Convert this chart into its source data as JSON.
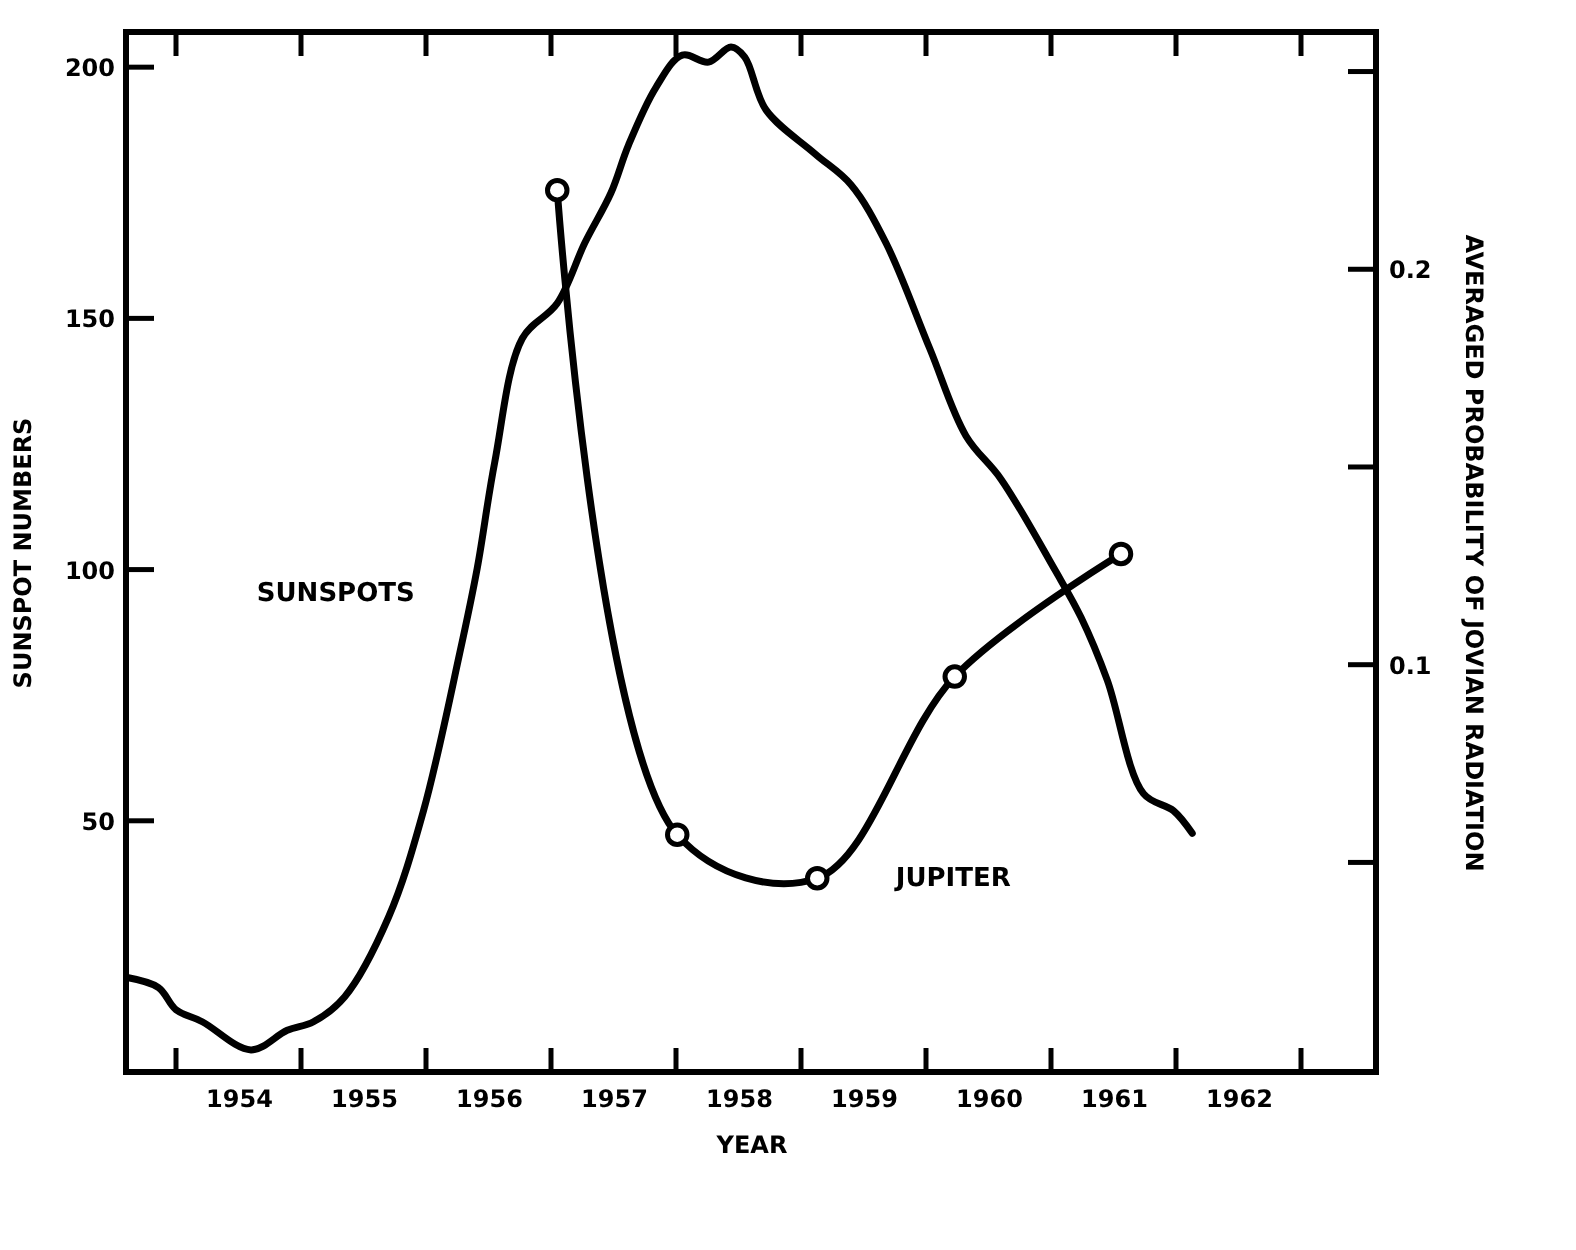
{
  "chart_data": {
    "type": "line",
    "xlabel": "YEAR",
    "ylabel": "SUNSPOT NUMBERS",
    "y2label": "AVERAGED PROBABILITY OF JOVIAN RADIATION",
    "xlim": [
      1953.6,
      1963.6
    ],
    "ylim": [
      0,
      207
    ],
    "y2lim": [
      -0.003,
      0.26
    ],
    "xticks": [
      {
        "value": 1954,
        "label": null
      },
      {
        "value": 1954.5,
        "label": "1954"
      },
      {
        "value": 1955,
        "label": null
      },
      {
        "value": 1955.5,
        "label": "1955"
      },
      {
        "value": 1956,
        "label": null
      },
      {
        "value": 1956.5,
        "label": "1956"
      },
      {
        "value": 1957,
        "label": null
      },
      {
        "value": 1957.5,
        "label": "1957"
      },
      {
        "value": 1958,
        "label": null
      },
      {
        "value": 1958.5,
        "label": "1958"
      },
      {
        "value": 1959,
        "label": null
      },
      {
        "value": 1959.5,
        "label": "1959"
      },
      {
        "value": 1960,
        "label": null
      },
      {
        "value": 1960.5,
        "label": "1960"
      },
      {
        "value": 1961,
        "label": null
      },
      {
        "value": 1961.5,
        "label": "1961"
      },
      {
        "value": 1962,
        "label": null
      },
      {
        "value": 1962.5,
        "label": "1962"
      },
      {
        "value": 1963,
        "label": null
      }
    ],
    "yticks": [
      50,
      100,
      150,
      200
    ],
    "y2ticks": [
      {
        "value": 0.05,
        "label": null
      },
      0.1,
      {
        "value": 0.15,
        "label": null
      },
      0.2,
      {
        "value": 0.25,
        "label": null
      }
    ],
    "grid": false,
    "line_style": "solid",
    "series": [
      {
        "name": "SUNSPOTS",
        "color": "#000000",
        "marker": "none",
        "x": [
          1953.61,
          1953.86,
          1954.0,
          1954.21,
          1954.6,
          1954.89,
          1955.1,
          1955.35,
          1955.7,
          1955.98,
          1956.27,
          1956.41,
          1956.55,
          1956.77,
          1957.05,
          1957.27,
          1957.48,
          1957.62,
          1957.84,
          1958.05,
          1958.26,
          1958.44,
          1958.55,
          1958.72,
          1959.11,
          1959.4,
          1959.68,
          1960.03,
          1960.32,
          1960.6,
          1961.03,
          1961.24,
          1961.45,
          1961.74,
          1961.98,
          1962.13
        ],
        "values": [
          18.8,
          16.8,
          12.4,
          10,
          4.4,
          8.3,
          10,
          15,
          30.8,
          52,
          83.4,
          100.3,
          121.4,
          146,
          153,
          165,
          175,
          184.5,
          196,
          202.4,
          201,
          204,
          202,
          191.5,
          182.8,
          176.6,
          165,
          144,
          126.6,
          118,
          100,
          90.5,
          78,
          55.4,
          52,
          47.5
        ]
      },
      {
        "name": "JUPITER",
        "color": "#000000",
        "marker": "circle",
        "axis": "y2",
        "x": [
          1957.05,
          1958.01,
          1959.13,
          1960.23,
          1961.56
        ],
        "values": [
          0.22,
          0.057,
          0.046,
          0.097,
          0.128
        ]
      }
    ]
  }
}
